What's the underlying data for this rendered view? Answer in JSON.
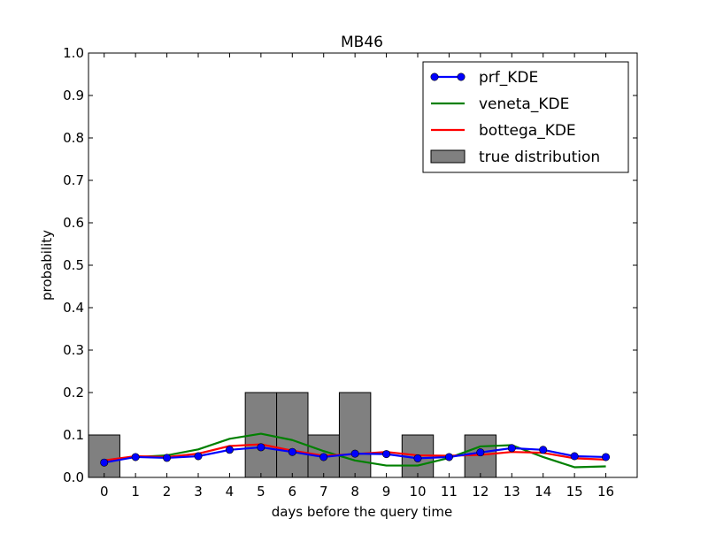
{
  "chart_data": {
    "type": "bar",
    "title": "MB46",
    "xlabel": "days before the query time",
    "ylabel": "probability",
    "xlim": [
      -0.5,
      17.0
    ],
    "ylim": [
      0.0,
      1.0
    ],
    "x": [
      0,
      1,
      2,
      3,
      4,
      5,
      6,
      7,
      8,
      9,
      10,
      11,
      12,
      13,
      14,
      15,
      16
    ],
    "xticks": [
      "0",
      "1",
      "2",
      "3",
      "4",
      "5",
      "6",
      "7",
      "8",
      "9",
      "10",
      "11",
      "12",
      "13",
      "14",
      "15",
      "16"
    ],
    "yticks": [
      "0.0",
      "0.1",
      "0.2",
      "0.3",
      "0.4",
      "0.5",
      "0.6",
      "0.7",
      "0.8",
      "0.9",
      "1.0"
    ],
    "grid": false,
    "legend_position": "top-right",
    "true_distribution": {
      "name": "true distribution",
      "values": [
        0.1,
        0.0,
        0.0,
        0.0,
        0.0,
        0.2,
        0.2,
        0.1,
        0.2,
        0.0,
        0.1,
        0.0,
        0.1,
        0.0,
        0.0,
        0.0,
        0.0
      ],
      "color": "#808080"
    },
    "series": [
      {
        "name": "prf_KDE",
        "marker": "circle",
        "color": "#0000ff",
        "values": [
          0.035,
          0.048,
          0.046,
          0.05,
          0.065,
          0.071,
          0.06,
          0.048,
          0.056,
          0.055,
          0.045,
          0.048,
          0.059,
          0.069,
          0.065,
          0.05,
          0.048
        ]
      },
      {
        "name": "veneta_KDE",
        "marker": "none",
        "color": "#008000",
        "values": [
          0.04,
          0.048,
          0.052,
          0.066,
          0.091,
          0.103,
          0.088,
          0.062,
          0.04,
          0.028,
          0.028,
          0.046,
          0.073,
          0.076,
          0.048,
          0.024,
          0.026
        ]
      },
      {
        "name": "bottega_KDE",
        "marker": "none",
        "color": "#ff0000",
        "values": [
          0.04,
          0.05,
          0.048,
          0.056,
          0.074,
          0.078,
          0.063,
          0.051,
          0.055,
          0.06,
          0.052,
          0.051,
          0.053,
          0.06,
          0.058,
          0.045,
          0.042
        ]
      }
    ]
  }
}
